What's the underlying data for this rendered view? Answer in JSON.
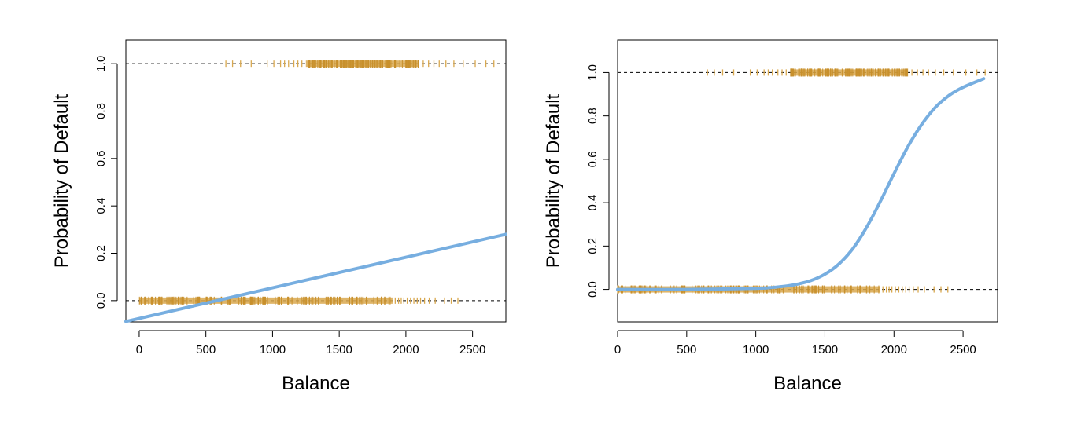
{
  "colors": {
    "fit_line": "#77aee0",
    "rug": "#d9a84e",
    "rug_dense": "#c8902c",
    "axis": "#000000",
    "reference_line": "#000000"
  },
  "chart_data": [
    {
      "type": "scatter",
      "fit": "linear",
      "xlabel": "Balance",
      "ylabel": "Probability of Default",
      "xlim": [
        -100,
        2750
      ],
      "ylim": [
        -0.09,
        1.1
      ],
      "xticks": [
        0,
        500,
        1000,
        1500,
        2000,
        2500
      ],
      "yticks": [
        0.0,
        0.2,
        0.4,
        0.6,
        0.8,
        1.0
      ],
      "ytick_labels": [
        "0.0",
        "0.2",
        "0.4",
        "0.6",
        "0.8",
        "1.0"
      ],
      "grid": false,
      "reference_lines_y": [
        0,
        1
      ],
      "fit_line": {
        "x": [
          -100,
          2750
        ],
        "y": [
          -0.088,
          0.28
        ]
      },
      "rug_default_0": {
        "y": 0,
        "dense_range": [
          0,
          1900
        ],
        "sparse_x": [
          1920,
          1945,
          1965,
          1985,
          2010,
          2035,
          2060,
          2085,
          2110,
          2140,
          2175,
          2220,
          2290,
          2340,
          2390
        ]
      },
      "rug_default_1": {
        "y": 1,
        "dense_range": [
          1250,
          2100
        ],
        "sparse_x": [
          650,
          700,
          760,
          840,
          960,
          1010,
          1060,
          1090,
          1120,
          1160,
          1190,
          1220,
          2130,
          2170,
          2210,
          2250,
          2300,
          2360,
          2430,
          2520,
          2600,
          2660
        ]
      }
    },
    {
      "type": "scatter",
      "fit": "logistic",
      "xlabel": "Balance",
      "ylabel": "Probability of Default",
      "xlim": [
        0,
        2750
      ],
      "ylim": [
        -0.15,
        1.15
      ],
      "xticks": [
        0,
        500,
        1000,
        1500,
        2000,
        2500
      ],
      "yticks": [
        0.0,
        0.2,
        0.4,
        0.6,
        0.8,
        1.0
      ],
      "ytick_labels": [
        "0.0",
        "0.2",
        "0.4",
        "0.6",
        "0.8",
        "1.0"
      ],
      "grid": false,
      "reference_lines_y": [
        0,
        1
      ],
      "fit_line": {
        "x": [
          0,
          500,
          1000,
          1100,
          1200,
          1300,
          1400,
          1500,
          1600,
          1700,
          1800,
          1900,
          2000,
          2100,
          2200,
          2300,
          2400,
          2500,
          2650
        ],
        "y": [
          0.0,
          0.0,
          0.005,
          0.008,
          0.014,
          0.024,
          0.041,
          0.07,
          0.116,
          0.186,
          0.284,
          0.404,
          0.534,
          0.657,
          0.76,
          0.84,
          0.895,
          0.932,
          0.972
        ]
      },
      "rug_default_0": {
        "y": 0,
        "dense_range": [
          0,
          1900
        ],
        "sparse_x": [
          1920,
          1945,
          1965,
          1985,
          2010,
          2035,
          2060,
          2085,
          2110,
          2140,
          2175,
          2220,
          2290,
          2340,
          2390
        ]
      },
      "rug_default_1": {
        "y": 1,
        "dense_range": [
          1250,
          2100
        ],
        "sparse_x": [
          650,
          700,
          760,
          840,
          960,
          1010,
          1060,
          1090,
          1120,
          1160,
          1190,
          1220,
          2130,
          2170,
          2210,
          2250,
          2300,
          2360,
          2430,
          2520,
          2600,
          2660
        ]
      }
    }
  ]
}
